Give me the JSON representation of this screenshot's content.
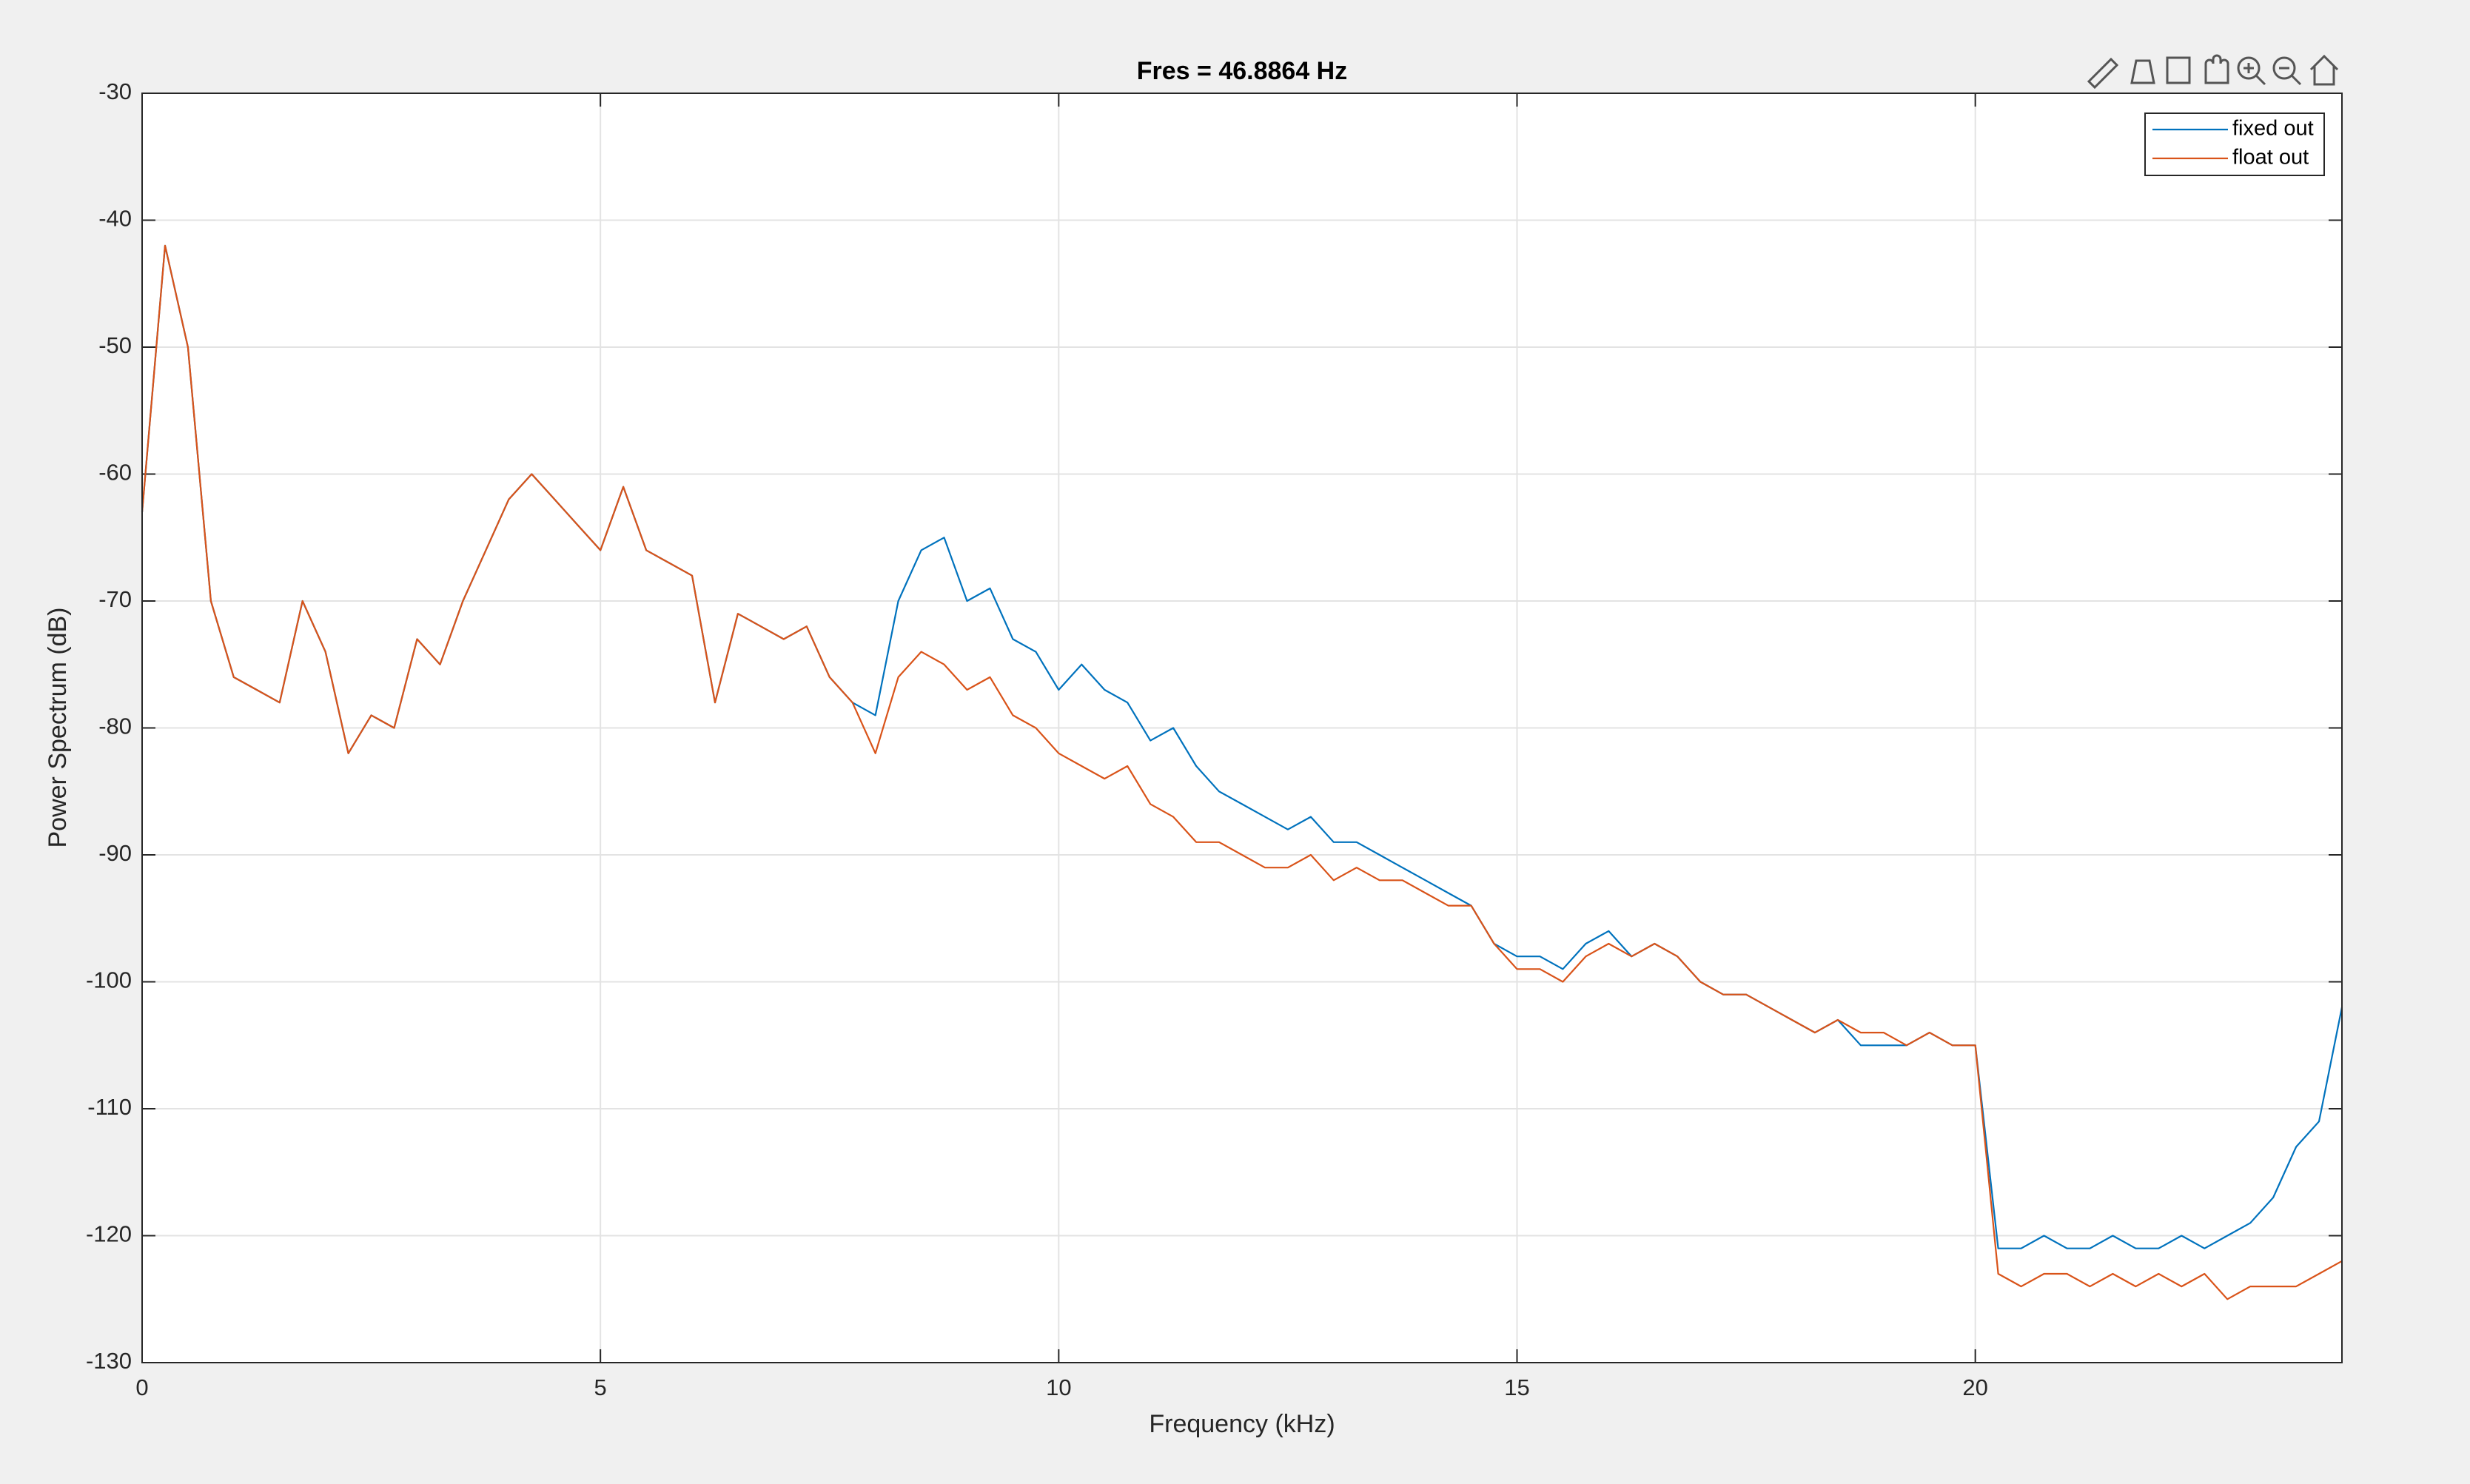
{
  "chart_data": {
    "type": "line",
    "title": "Fres = 46.8864 Hz",
    "x_label": "Frequency (kHz)",
    "y_label": "Power Spectrum (dB)",
    "x": [
      0,
      0.25,
      0.5,
      0.75,
      1,
      1.25,
      1.5,
      1.75,
      2,
      2.25,
      2.5,
      2.75,
      3,
      3.25,
      3.5,
      3.75,
      4,
      4.25,
      4.5,
      4.75,
      5,
      5.25,
      5.5,
      5.75,
      6,
      6.25,
      6.5,
      6.75,
      7,
      7.25,
      7.5,
      7.75,
      8,
      8.25,
      8.5,
      8.75,
      9,
      9.25,
      9.5,
      9.75,
      10,
      10.25,
      10.5,
      10.75,
      11,
      11.25,
      11.5,
      11.75,
      12,
      12.25,
      12.5,
      12.75,
      13,
      13.25,
      13.5,
      13.75,
      14,
      14.25,
      14.5,
      14.75,
      15,
      15.25,
      15.5,
      15.75,
      16,
      16.25,
      16.5,
      16.75,
      17,
      17.25,
      17.5,
      17.75,
      18,
      18.25,
      18.5,
      18.75,
      19,
      19.25,
      19.5,
      19.75,
      20,
      20.25,
      20.5,
      20.75,
      21,
      21.25,
      21.5,
      21.75,
      22,
      22.25,
      22.5,
      22.75,
      23,
      23.25,
      23.5,
      23.75,
      24
    ],
    "series": [
      {
        "name": "fixed out",
        "color": "#0072bd",
        "values": [
          -63,
          -42,
          -50,
          -70,
          -76,
          -77,
          -78,
          -70,
          -74,
          -82,
          -79,
          -80,
          -73,
          -75,
          -70,
          -66,
          -62,
          -60,
          -62,
          -64,
          -66,
          -61,
          -66,
          -67,
          -68,
          -78,
          -71,
          -72,
          -73,
          -72,
          -76,
          -78,
          -79,
          -70,
          -66,
          -65,
          -70,
          -69,
          -73,
          -74,
          -77,
          -75,
          -77,
          -78,
          -81,
          -80,
          -83,
          -85,
          -86,
          -87,
          -88,
          -87,
          -89,
          -89,
          -90,
          -91,
          -92,
          -93,
          -94,
          -97,
          -98,
          -98,
          -99,
          -97,
          -96,
          -98,
          -97,
          -98,
          -100,
          -101,
          -101,
          -102,
          -103,
          -104,
          -103,
          -105,
          -105,
          -105,
          -104,
          -105,
          -105,
          -121,
          -121,
          -120,
          -121,
          -121,
          -120,
          -121,
          -121,
          -120,
          -121,
          -120,
          -119,
          -117,
          -113,
          -111,
          -102
        ]
      },
      {
        "name": "float out",
        "color": "#d95319",
        "values": [
          -63,
          -42,
          -50,
          -70,
          -76,
          -77,
          -78,
          -70,
          -74,
          -82,
          -79,
          -80,
          -73,
          -75,
          -70,
          -66,
          -62,
          -60,
          -62,
          -64,
          -66,
          -61,
          -66,
          -67,
          -68,
          -78,
          -71,
          -72,
          -73,
          -72,
          -76,
          -78,
          -82,
          -76,
          -74,
          -75,
          -77,
          -76,
          -79,
          -80,
          -82,
          -83,
          -84,
          -83,
          -86,
          -87,
          -89,
          -89,
          -90,
          -91,
          -91,
          -90,
          -92,
          -91,
          -92,
          -92,
          -93,
          -94,
          -94,
          -97,
          -99,
          -99,
          -100,
          -98,
          -97,
          -98,
          -97,
          -98,
          -100,
          -101,
          -101,
          -102,
          -103,
          -104,
          -103,
          -104,
          -104,
          -105,
          -104,
          -105,
          -105,
          -123,
          -124,
          -123,
          -123,
          -124,
          -123,
          -124,
          -123,
          -124,
          -123,
          -125,
          -124,
          -124,
          -124,
          -123,
          -122
        ]
      }
    ],
    "xlim": [
      0,
      24
    ],
    "xticks": [
      0,
      5,
      10,
      15,
      20
    ],
    "ylim": [
      -130,
      -30
    ],
    "yticks": [
      -130,
      -120,
      -110,
      -100,
      -90,
      -80,
      -70,
      -60,
      -50,
      -40,
      -30
    ],
    "grid": true,
    "legend": "northeast"
  }
}
